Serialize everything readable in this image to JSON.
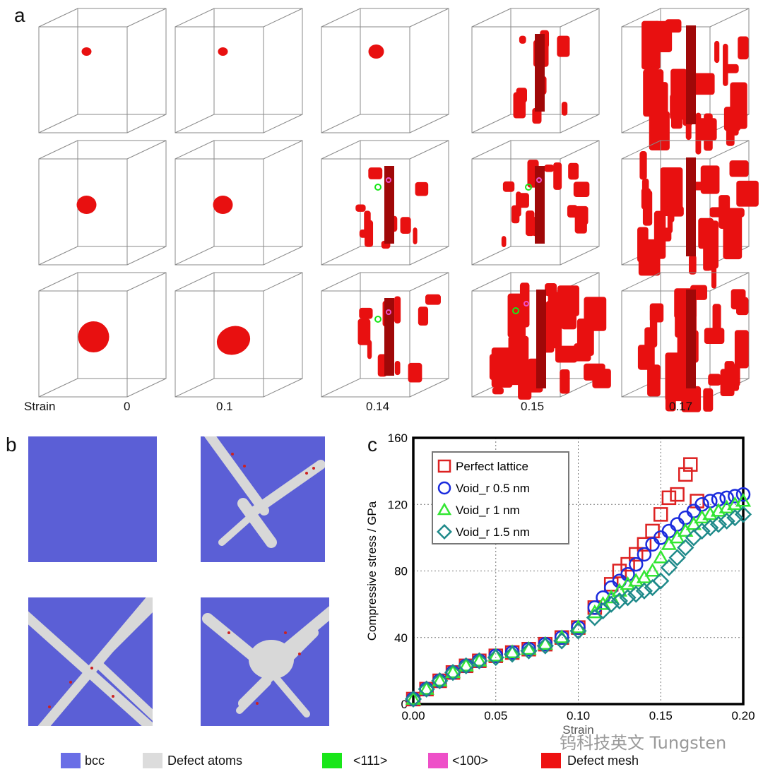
{
  "panel_a": {
    "label": "a",
    "strain_label": "Strain",
    "strain_values": [
      "0",
      "0.1",
      "0.14",
      "0.15",
      "0.17"
    ]
  },
  "panel_b": {
    "label": "b"
  },
  "panel_c": {
    "label": "c"
  },
  "legend": {
    "items": [
      {
        "label": "bcc",
        "color": "#6a6ee6"
      },
      {
        "label": "Defect atoms",
        "color": "#dcdcdc"
      },
      {
        "label": "<111>",
        "color": "#19e619"
      },
      {
        "label": "<100>",
        "color": "#ee4fc8"
      },
      {
        "label": "Defect mesh",
        "color": "#ee1111"
      }
    ]
  },
  "watermark": "钨科技英文 Tungsten",
  "chart_data": {
    "type": "scatter",
    "title": "",
    "xlabel": "Strain",
    "ylabel": "Compressive stress / GPa",
    "xlim": [
      0,
      0.2
    ],
    "ylim": [
      0,
      160
    ],
    "xticks": [
      "0.00",
      "0.05",
      "0.10",
      "0.15",
      "0.20"
    ],
    "yticks": [
      "0",
      "40",
      "80",
      "120",
      "160"
    ],
    "grid": true,
    "legend_position": "top-left",
    "series": [
      {
        "name": "Perfect lattice",
        "marker": "square",
        "color": "#dd2222",
        "x": [
          0.0,
          0.008,
          0.016,
          0.024,
          0.032,
          0.04,
          0.05,
          0.06,
          0.07,
          0.08,
          0.09,
          0.1,
          0.11,
          0.12,
          0.125,
          0.13,
          0.135,
          0.14,
          0.145,
          0.15,
          0.155,
          0.16,
          0.165,
          0.168,
          0.172
        ],
        "y": [
          3,
          9,
          14,
          19,
          23,
          26,
          29,
          31,
          33,
          36,
          40,
          46,
          58,
          72,
          80,
          84,
          90,
          96,
          104,
          114,
          124,
          126,
          138,
          144,
          122
        ]
      },
      {
        "name": "Void_r 0.5 nm",
        "marker": "circle",
        "color": "#1a2bdd",
        "x": [
          0.0,
          0.008,
          0.016,
          0.024,
          0.032,
          0.04,
          0.05,
          0.06,
          0.07,
          0.08,
          0.09,
          0.1,
          0.11,
          0.115,
          0.12,
          0.125,
          0.13,
          0.135,
          0.14,
          0.145,
          0.15,
          0.155,
          0.16,
          0.165,
          0.17,
          0.175,
          0.18,
          0.185,
          0.19,
          0.195,
          0.2
        ],
        "y": [
          3,
          9,
          14,
          19,
          23,
          26,
          29,
          31,
          33,
          36,
          40,
          46,
          58,
          64,
          70,
          74,
          78,
          84,
          90,
          96,
          100,
          104,
          108,
          112,
          116,
          120,
          122,
          123,
          124,
          125,
          126
        ]
      },
      {
        "name": "Void_r 1 nm",
        "marker": "triangle",
        "color": "#33e633",
        "x": [
          0.0,
          0.008,
          0.016,
          0.024,
          0.032,
          0.04,
          0.05,
          0.06,
          0.07,
          0.08,
          0.09,
          0.1,
          0.11,
          0.115,
          0.12,
          0.125,
          0.13,
          0.135,
          0.14,
          0.145,
          0.15,
          0.155,
          0.16,
          0.165,
          0.17,
          0.175,
          0.18,
          0.185,
          0.19,
          0.195,
          0.2
        ],
        "y": [
          3,
          9,
          14,
          19,
          23,
          26,
          29,
          31,
          33,
          36,
          40,
          46,
          55,
          60,
          64,
          68,
          72,
          74,
          76,
          80,
          88,
          96,
          100,
          104,
          108,
          112,
          114,
          116,
          118,
          120,
          122
        ]
      },
      {
        "name": "Void_r 1.5 nm",
        "marker": "diamond",
        "color": "#1f8a8a",
        "x": [
          0.0,
          0.008,
          0.016,
          0.024,
          0.032,
          0.04,
          0.05,
          0.06,
          0.07,
          0.08,
          0.09,
          0.1,
          0.11,
          0.115,
          0.12,
          0.125,
          0.13,
          0.135,
          0.14,
          0.145,
          0.15,
          0.155,
          0.16,
          0.165,
          0.17,
          0.175,
          0.18,
          0.185,
          0.19,
          0.195,
          0.2
        ],
        "y": [
          3,
          9,
          14,
          19,
          23,
          26,
          28,
          30,
          32,
          35,
          38,
          44,
          52,
          56,
          60,
          62,
          64,
          66,
          68,
          70,
          74,
          82,
          88,
          94,
          100,
          104,
          106,
          108,
          110,
          112,
          114
        ]
      }
    ]
  }
}
